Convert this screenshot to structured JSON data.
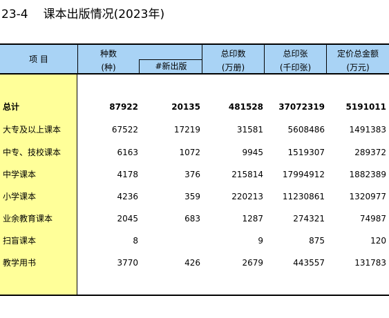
{
  "title": {
    "code": "23-4",
    "text": "课本出版情况(2023年)"
  },
  "header": {
    "item": "项  目",
    "kinds": "种数",
    "kinds_unit": "(种)",
    "new_pub": "#新出版",
    "prints": "总印数",
    "prints_unit": "(万册)",
    "sheets": "总印张",
    "sheets_unit": "(千印张)",
    "price": "定价总金额",
    "price_unit": "(万元)"
  },
  "rows": [
    {
      "label": "总计",
      "kinds": "87922",
      "new_pub": "20135",
      "prints": "481528",
      "sheets": "37072319",
      "price": "5191011"
    },
    {
      "label": "大专及以上课本",
      "kinds": "67522",
      "new_pub": "17219",
      "prints": "31581",
      "sheets": "5608486",
      "price": "1491383"
    },
    {
      "label": "中专、技校课本",
      "kinds": "6163",
      "new_pub": "1072",
      "prints": "9945",
      "sheets": "1519307",
      "price": "289372"
    },
    {
      "label": "中学课本",
      "kinds": "4178",
      "new_pub": "376",
      "prints": "215814",
      "sheets": "17994912",
      "price": "1882389"
    },
    {
      "label": "小学课本",
      "kinds": "4236",
      "new_pub": "359",
      "prints": "220213",
      "sheets": "11230861",
      "price": "1320977"
    },
    {
      "label": "业余教育课本",
      "kinds": "2045",
      "new_pub": "683",
      "prints": "1287",
      "sheets": "274321",
      "price": "74987"
    },
    {
      "label": "扫盲课本",
      "kinds": "8",
      "new_pub": "",
      "prints": "9",
      "sheets": "875",
      "price": "120"
    },
    {
      "label": "教学用书",
      "kinds": "3770",
      "new_pub": "426",
      "prints": "2679",
      "sheets": "443557",
      "price": "131783"
    }
  ]
}
